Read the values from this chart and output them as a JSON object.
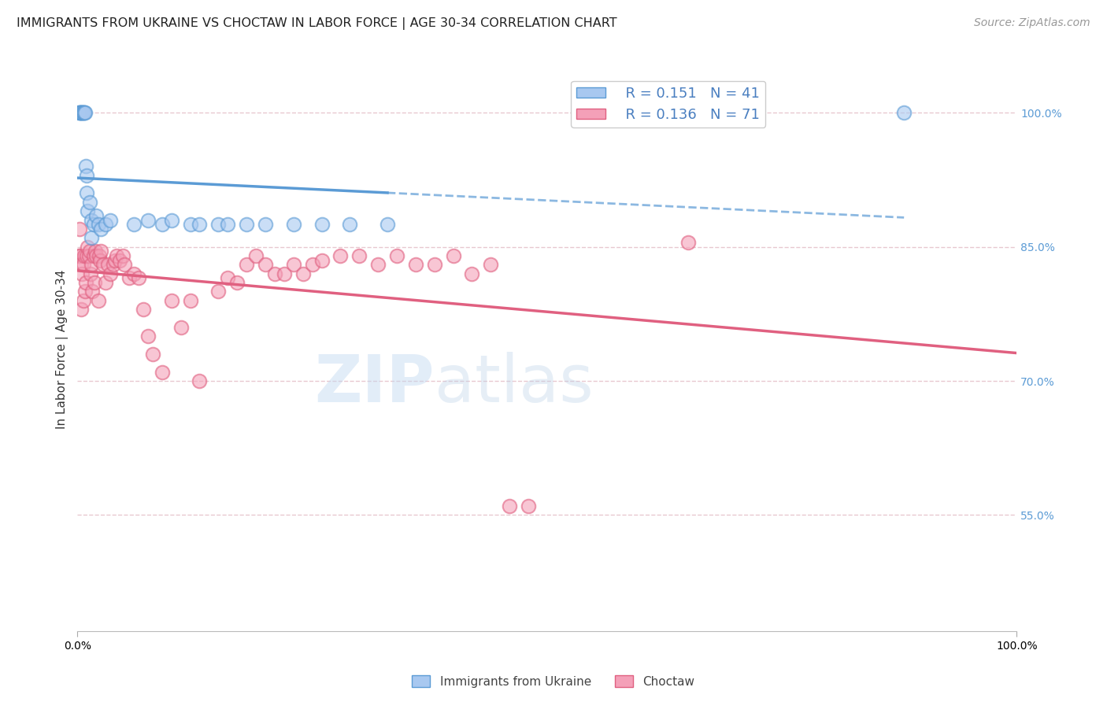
{
  "title": "IMMIGRANTS FROM UKRAINE VS CHOCTAW IN LABOR FORCE | AGE 30-34 CORRELATION CHART",
  "source": "Source: ZipAtlas.com",
  "ylabel": "In Labor Force | Age 30-34",
  "xlim": [
    0.0,
    1.0
  ],
  "ylim": [
    0.42,
    1.05
  ],
  "yticks": [
    0.55,
    0.7,
    0.85,
    1.0
  ],
  "ytick_labels": [
    "55.0%",
    "70.0%",
    "85.0%",
    "100.0%"
  ],
  "xtick_labels": [
    "0.0%",
    "100.0%"
  ],
  "xticks": [
    0.0,
    1.0
  ],
  "legend_r_ukraine": "0.151",
  "legend_n_ukraine": "41",
  "legend_r_choctaw": "0.136",
  "legend_n_choctaw": "71",
  "ukraine_color": "#A8C8F0",
  "choctaw_color": "#F4A0B8",
  "ukraine_line_color": "#5B9BD5",
  "choctaw_line_color": "#E06080",
  "background_color": "#FFFFFF",
  "grid_color": "#E8C8D0",
  "ukraine_x": [
    0.001,
    0.002,
    0.003,
    0.003,
    0.004,
    0.004,
    0.005,
    0.005,
    0.006,
    0.006,
    0.007,
    0.007,
    0.008,
    0.009,
    0.01,
    0.01,
    0.011,
    0.013,
    0.015,
    0.015,
    0.017,
    0.02,
    0.022,
    0.025,
    0.03,
    0.035,
    0.06,
    0.075,
    0.09,
    0.1,
    0.12,
    0.13,
    0.15,
    0.16,
    0.18,
    0.2,
    0.23,
    0.26,
    0.29,
    0.33,
    0.88
  ],
  "ukraine_y": [
    1.0,
    1.0,
    1.0,
    1.0,
    1.0,
    1.0,
    1.0,
    1.0,
    1.0,
    1.0,
    1.0,
    1.0,
    1.0,
    0.94,
    0.93,
    0.91,
    0.89,
    0.9,
    0.88,
    0.86,
    0.875,
    0.885,
    0.875,
    0.87,
    0.875,
    0.88,
    0.875,
    0.88,
    0.875,
    0.88,
    0.875,
    0.875,
    0.875,
    0.875,
    0.875,
    0.875,
    0.875,
    0.875,
    0.875,
    0.875,
    1.0
  ],
  "choctaw_x": [
    0.001,
    0.002,
    0.003,
    0.004,
    0.004,
    0.005,
    0.006,
    0.006,
    0.007,
    0.008,
    0.009,
    0.01,
    0.011,
    0.012,
    0.013,
    0.014,
    0.015,
    0.016,
    0.017,
    0.018,
    0.019,
    0.02,
    0.022,
    0.023,
    0.024,
    0.025,
    0.027,
    0.03,
    0.032,
    0.035,
    0.038,
    0.04,
    0.042,
    0.045,
    0.048,
    0.05,
    0.055,
    0.06,
    0.065,
    0.07,
    0.075,
    0.08,
    0.09,
    0.1,
    0.11,
    0.12,
    0.13,
    0.15,
    0.16,
    0.17,
    0.18,
    0.19,
    0.2,
    0.21,
    0.22,
    0.23,
    0.24,
    0.25,
    0.26,
    0.28,
    0.3,
    0.32,
    0.34,
    0.36,
    0.38,
    0.4,
    0.42,
    0.44,
    0.46,
    0.48,
    0.65
  ],
  "choctaw_y": [
    0.84,
    0.87,
    0.84,
    0.83,
    0.78,
    0.82,
    0.83,
    0.79,
    0.84,
    0.8,
    0.81,
    0.84,
    0.85,
    0.84,
    0.845,
    0.82,
    0.83,
    0.8,
    0.84,
    0.81,
    0.845,
    0.84,
    0.79,
    0.84,
    0.835,
    0.845,
    0.83,
    0.81,
    0.83,
    0.82,
    0.83,
    0.835,
    0.84,
    0.835,
    0.84,
    0.83,
    0.815,
    0.82,
    0.815,
    0.78,
    0.75,
    0.73,
    0.71,
    0.79,
    0.76,
    0.79,
    0.7,
    0.8,
    0.815,
    0.81,
    0.83,
    0.84,
    0.83,
    0.82,
    0.82,
    0.83,
    0.82,
    0.83,
    0.835,
    0.84,
    0.84,
    0.83,
    0.84,
    0.83,
    0.83,
    0.84,
    0.82,
    0.83,
    0.56,
    0.56,
    0.855
  ],
  "title_fontsize": 11.5,
  "label_fontsize": 11,
  "tick_fontsize": 10,
  "legend_fontsize": 13,
  "watermark_fontsize": 60,
  "source_fontsize": 10
}
